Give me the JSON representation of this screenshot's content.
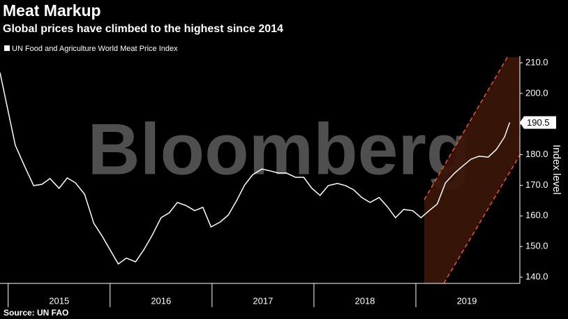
{
  "chart_data": {
    "type": "line",
    "title": "Meat Markup",
    "subtitle": "Global prices have climbed to the highest since 2014",
    "legend_label": "UN Food and Agriculture World Meat Price Index",
    "watermark": "Bloomberg",
    "source": "Source: UN FAO",
    "y_axis_label": "Index level",
    "color": "#ffffff",
    "x": [
      2014.92,
      2015.07,
      2015.16,
      2015.25,
      2015.33,
      2015.41,
      2015.5,
      2015.58,
      2015.66,
      2015.75,
      2015.84,
      2015.92,
      2016.0,
      2016.08,
      2016.16,
      2016.25,
      2016.33,
      2016.41,
      2016.5,
      2016.58,
      2016.66,
      2016.75,
      2016.83,
      2016.91,
      2016.99,
      2017.08,
      2017.16,
      2017.24,
      2017.32,
      2017.4,
      2017.49,
      2017.57,
      2017.65,
      2017.73,
      2017.82,
      2017.9,
      2017.98,
      2018.06,
      2018.14,
      2018.23,
      2018.31,
      2018.39,
      2018.47,
      2018.55,
      2018.64,
      2018.72,
      2018.8,
      2018.88,
      2018.97,
      2019.05,
      2019.13,
      2019.21,
      2019.29,
      2019.38,
      2019.46,
      2019.54,
      2019.62,
      2019.71,
      2019.79,
      2019.87,
      2019.92
    ],
    "values": [
      206.8,
      183.1,
      176.3,
      169.9,
      170.3,
      172.2,
      169.0,
      172.4,
      170.8,
      167.1,
      157.6,
      153.5,
      148.9,
      144.3,
      146.2,
      145.0,
      148.9,
      153.5,
      159.4,
      161.0,
      164.4,
      163.3,
      161.7,
      162.8,
      156.4,
      158.0,
      160.3,
      164.9,
      170.1,
      173.5,
      175.3,
      174.7,
      174.0,
      174.0,
      172.6,
      172.6,
      169.0,
      166.7,
      169.9,
      170.6,
      169.9,
      168.5,
      166.0,
      164.4,
      166.0,
      163.0,
      159.4,
      162.1,
      161.7,
      159.4,
      161.7,
      163.9,
      170.8,
      174.0,
      176.3,
      178.5,
      179.5,
      179.2,
      181.7,
      185.8,
      190.5
    ],
    "last_value_label": "190.5",
    "xlim": [
      2014.92,
      2020.02
    ],
    "year_labels": [
      2015,
      2016,
      2017,
      2018,
      2019
    ],
    "ylim": [
      140,
      210
    ],
    "yticks": [
      {
        "value": 140,
        "label": "140.0"
      },
      {
        "value": 150,
        "label": "150.0"
      },
      {
        "value": 160,
        "label": "160.0"
      },
      {
        "value": 170,
        "label": "170.0"
      },
      {
        "value": 180,
        "label": "180.0"
      },
      {
        "value": 190,
        "label": "190.0"
      },
      {
        "value": 200,
        "label": "200.0"
      },
      {
        "value": 210,
        "label": "210.0"
      }
    ]
  }
}
